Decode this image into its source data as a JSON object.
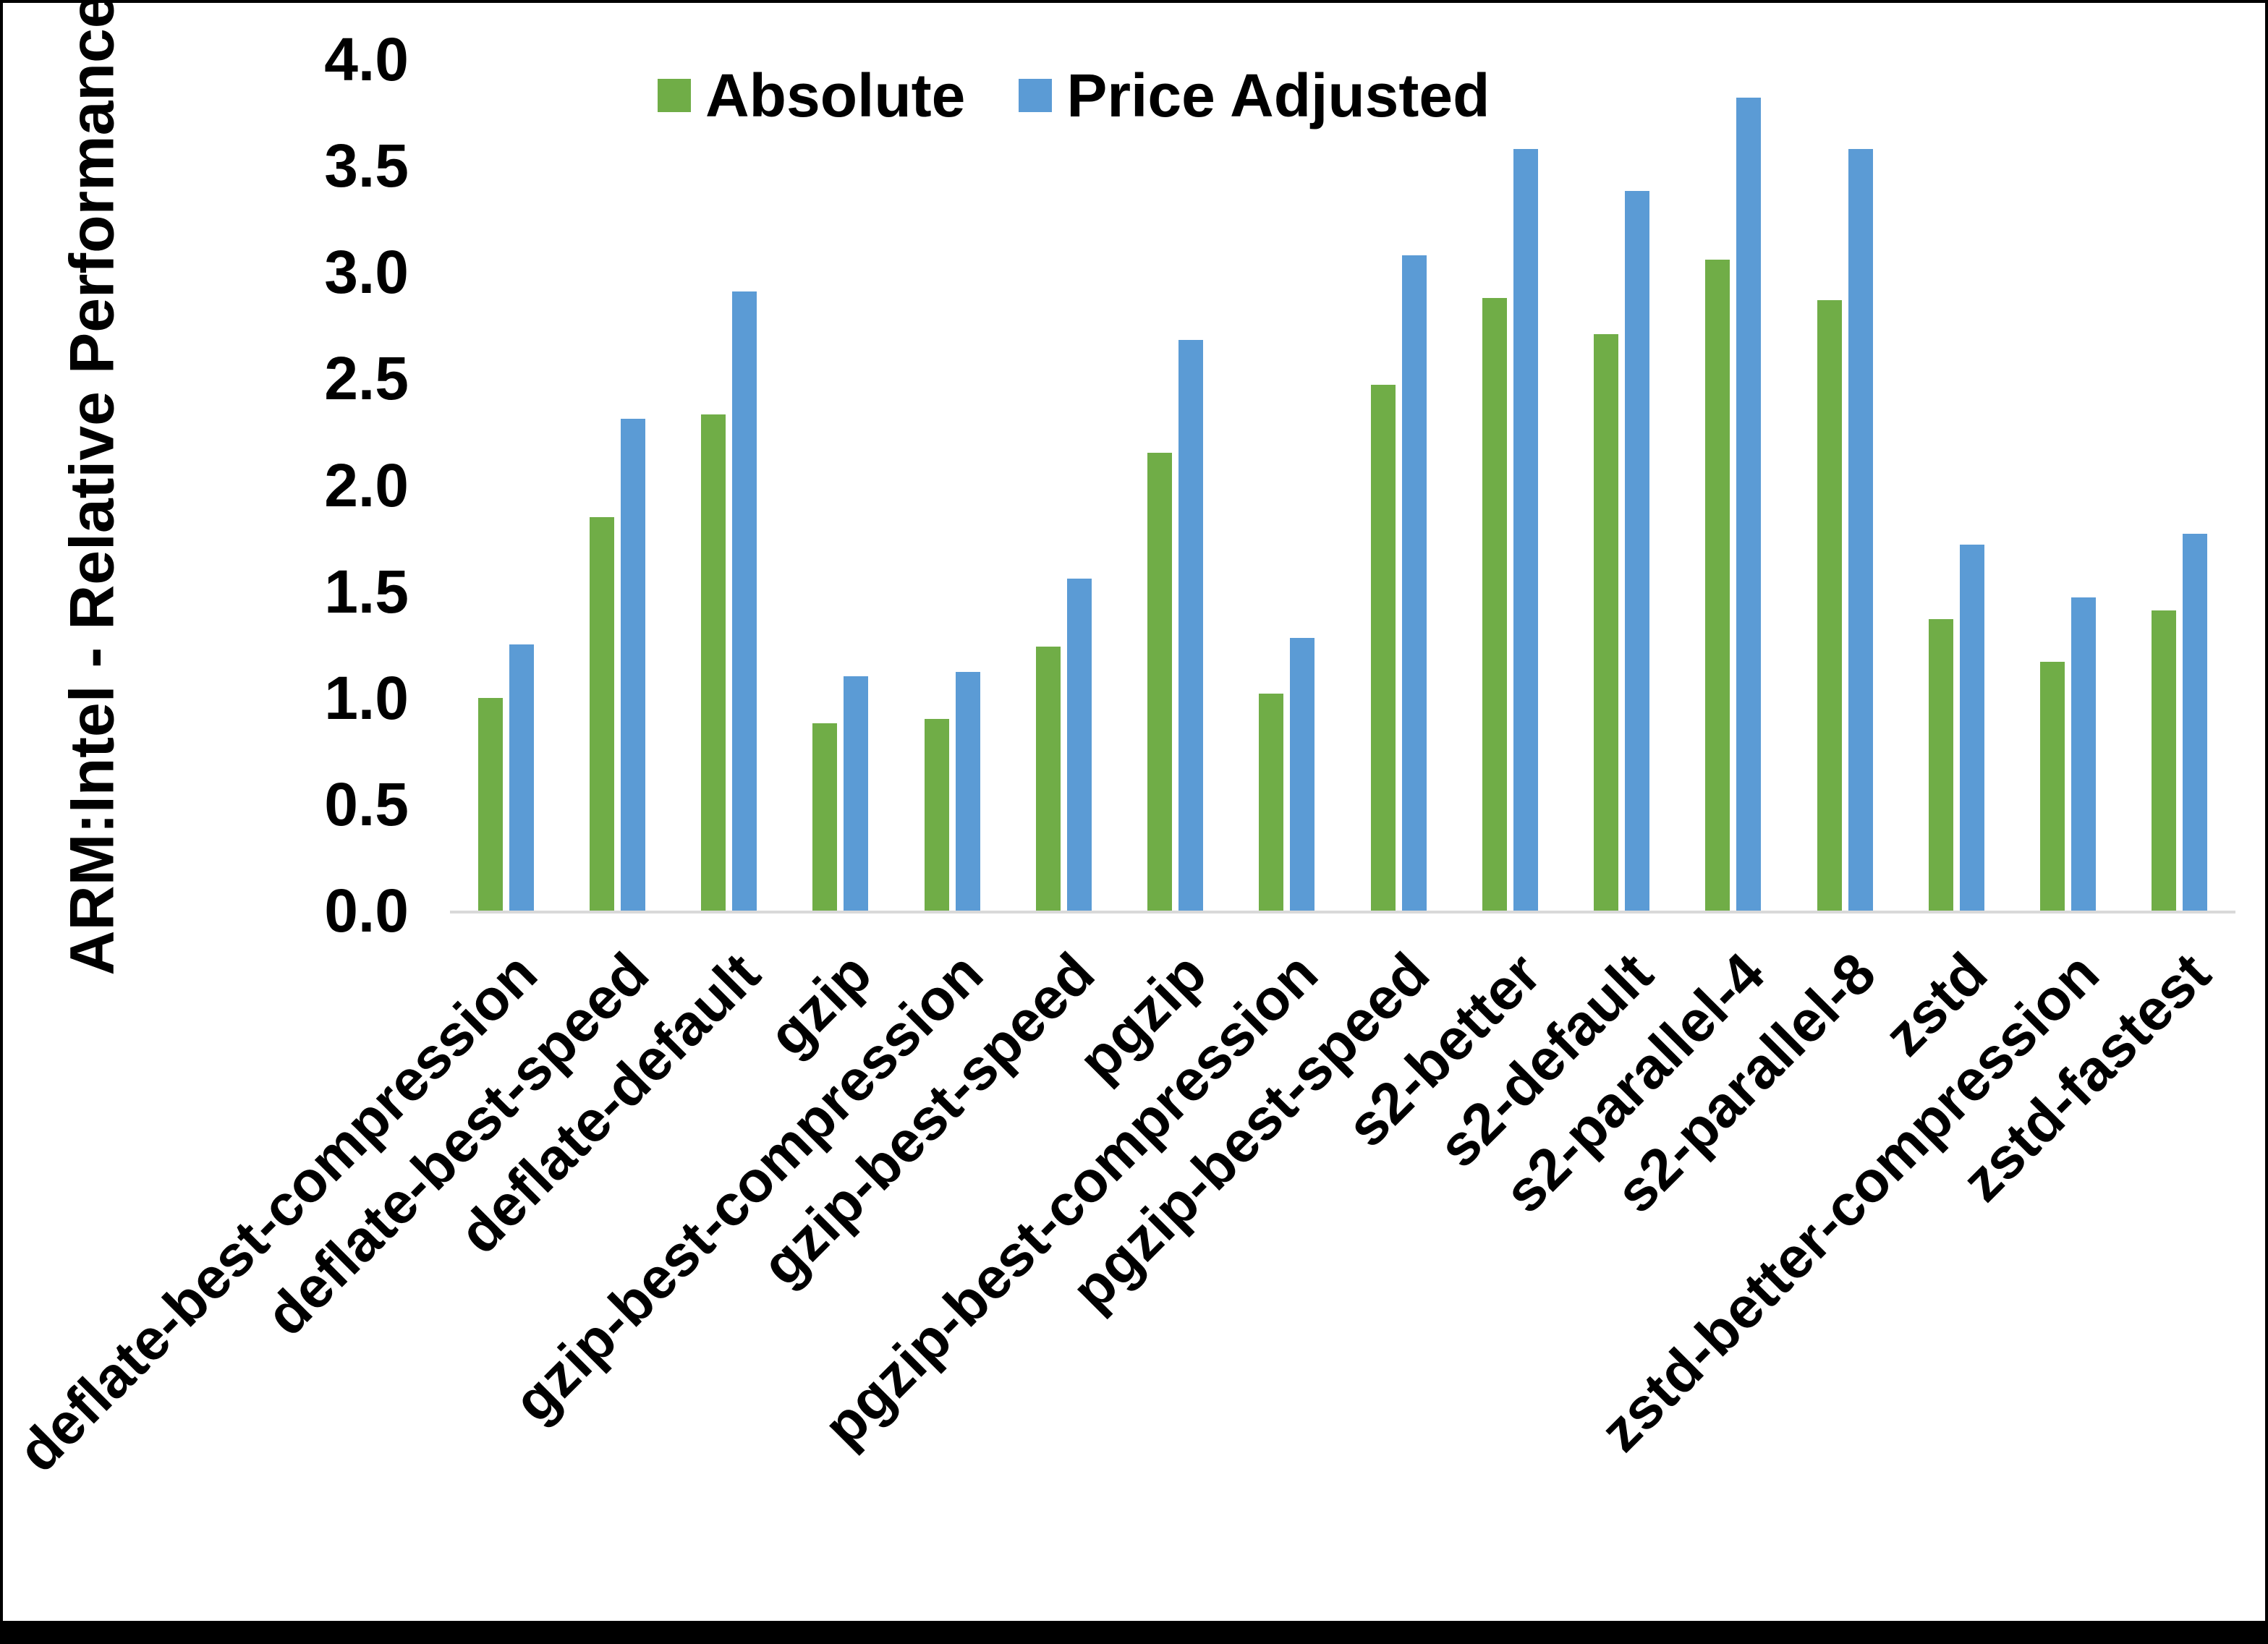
{
  "chart_data": {
    "type": "bar",
    "title": "",
    "ylabel": "ARM:Intel - Relative Performance",
    "xlabel": "",
    "ylim": [
      0.0,
      4.0
    ],
    "ytick_labels": [
      "4.0",
      "3.5",
      "3.0",
      "2.5",
      "2.0",
      "1.5",
      "1.0",
      "0.5",
      "0.0"
    ],
    "grid": false,
    "legend_position": "top-center",
    "axis_line_color": "#D9D9D9",
    "categories": [
      "deflate-best-compression",
      "deflate-best-speed",
      "deflate-default",
      "gzip",
      "gzip-best-compression",
      "gzip-best-speed",
      "pgzip",
      "pgzip-best-compression",
      "pgzip-best-speed",
      "s2-better",
      "s2-default",
      "s2-parallel-4",
      "s2-parallel-8",
      "zstd",
      "zstd-better-compression",
      "zstd-fastest"
    ],
    "series": [
      {
        "name": "Absolute",
        "color": "#70AD47",
        "values": [
          1.0,
          1.85,
          2.33,
          0.88,
          0.9,
          1.24,
          2.15,
          1.02,
          2.47,
          2.88,
          2.71,
          3.06,
          2.87,
          1.37,
          1.17,
          1.41
        ]
      },
      {
        "name": "Price Adjusted",
        "color": "#5B9BD5",
        "values": [
          1.25,
          2.31,
          2.91,
          1.1,
          1.12,
          1.56,
          2.68,
          1.28,
          3.08,
          3.58,
          3.38,
          3.82,
          3.58,
          1.72,
          1.47,
          1.77
        ]
      }
    ]
  }
}
